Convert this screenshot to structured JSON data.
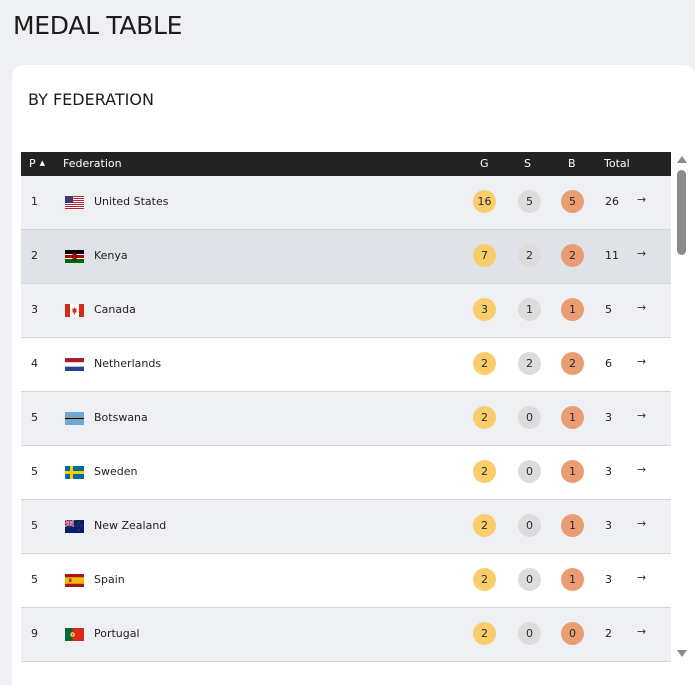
{
  "page": {
    "title": "MEDAL TABLE"
  },
  "card": {
    "title": "BY FEDERATION"
  },
  "table": {
    "headers": {
      "position": "P",
      "federation": "Federation",
      "gold": "G",
      "silver": "S",
      "bronze": "B",
      "total": "Total"
    },
    "sort_indicator": "▲",
    "rows": [
      {
        "pos": "1",
        "federation": "United States",
        "flag": "us-flag-icon",
        "gold": "16",
        "silver": "5",
        "bronze": "5",
        "total": "26"
      },
      {
        "pos": "2",
        "federation": "Kenya",
        "flag": "kenya-flag-icon",
        "gold": "7",
        "silver": "2",
        "bronze": "2",
        "total": "11"
      },
      {
        "pos": "3",
        "federation": "Canada",
        "flag": "canada-flag-icon",
        "gold": "3",
        "silver": "1",
        "bronze": "1",
        "total": "5"
      },
      {
        "pos": "4",
        "federation": "Netherlands",
        "flag": "netherlands-flag-icon",
        "gold": "2",
        "silver": "2",
        "bronze": "2",
        "total": "6"
      },
      {
        "pos": "5",
        "federation": "Botswana",
        "flag": "botswana-flag-icon",
        "gold": "2",
        "silver": "0",
        "bronze": "1",
        "total": "3"
      },
      {
        "pos": "5",
        "federation": "Sweden",
        "flag": "sweden-flag-icon",
        "gold": "2",
        "silver": "0",
        "bronze": "1",
        "total": "3"
      },
      {
        "pos": "5",
        "federation": "New Zealand",
        "flag": "new-zealand-flag-icon",
        "gold": "2",
        "silver": "0",
        "bronze": "1",
        "total": "3"
      },
      {
        "pos": "5",
        "federation": "Spain",
        "flag": "spain-flag-icon",
        "gold": "2",
        "silver": "0",
        "bronze": "1",
        "total": "3"
      },
      {
        "pos": "9",
        "federation": "Portugal",
        "flag": "portugal-flag-icon",
        "gold": "2",
        "silver": "0",
        "bronze": "0",
        "total": "2"
      }
    ],
    "row_arrow": "→"
  },
  "colors": {
    "gold": "#f9cd6b",
    "silver": "#dcdcdc",
    "bronze": "#ea9d72",
    "header_bg": "#232323",
    "highlight_row": "#dfe2e6"
  }
}
